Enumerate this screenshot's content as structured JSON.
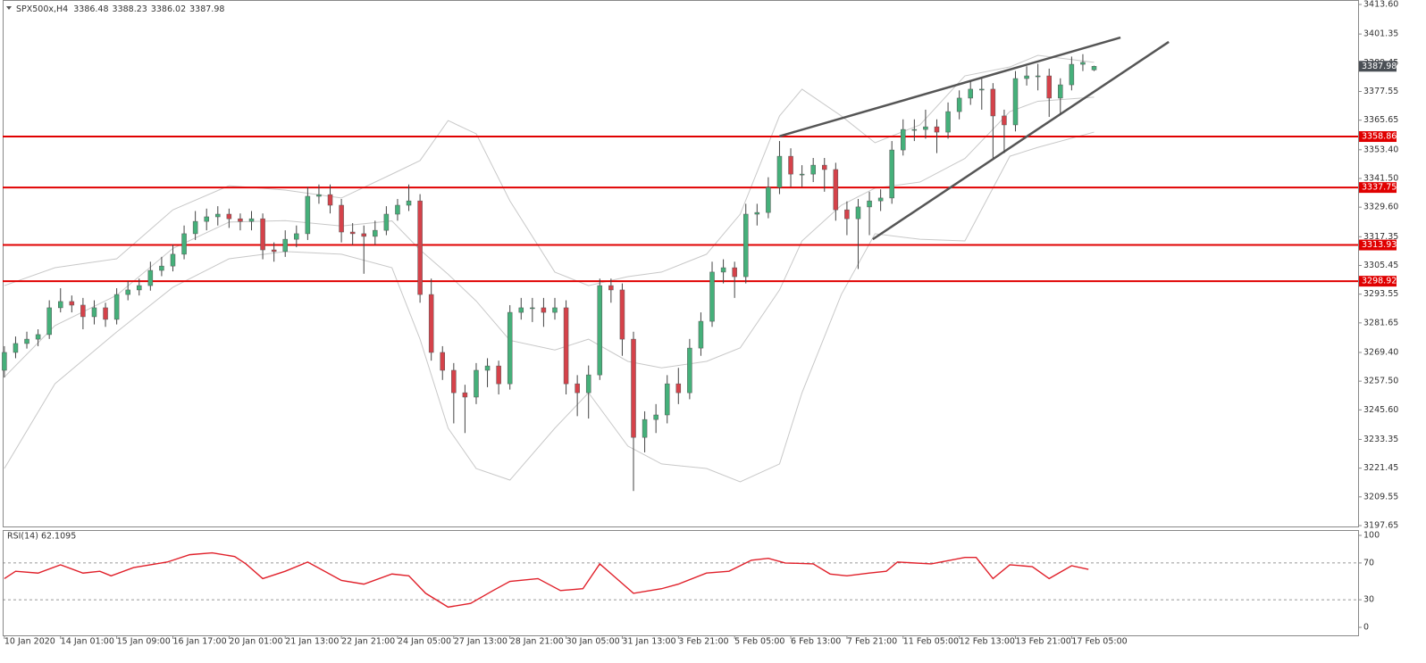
{
  "chart_data": [
    {
      "type": "candlestick",
      "title": "SPX500x,H4",
      "x": [
        0,
        2,
        4,
        6,
        8,
        10,
        12,
        14,
        16,
        18,
        20,
        22,
        24,
        26,
        28,
        30,
        32,
        34,
        36,
        38,
        40,
        42,
        44,
        46,
        48,
        50,
        52,
        54,
        56,
        58,
        60,
        62,
        64,
        66,
        68,
        70,
        72,
        74,
        76,
        78,
        80,
        82,
        84,
        86,
        88,
        90,
        92,
        94,
        96,
        98,
        100,
        102,
        104,
        106,
        108,
        110,
        112,
        114,
        116,
        118,
        120,
        122,
        124,
        126,
        128,
        130,
        132,
        134,
        136,
        138,
        140,
        142,
        144,
        146,
        148,
        150,
        152,
        154,
        156,
        158,
        160,
        162,
        164,
        166,
        168,
        170,
        172,
        174,
        176,
        178,
        180,
        182,
        184,
        186,
        188,
        190,
        192,
        194
      ],
      "open": [
        3262.0,
        3269.4,
        3273.1,
        3274.9,
        3276.8,
        3287.9,
        3290.5,
        3289.0,
        3284.2,
        3287.9,
        3283.1,
        3293.4,
        3295.3,
        3297.1,
        3303.4,
        3305.2,
        3310.1,
        3318.6,
        3323.7,
        3325.6,
        3326.7,
        3324.8,
        3323.7,
        3324.8,
        3311.9,
        3311.2,
        3316.3,
        3318.6,
        3334.1,
        3334.8,
        3330.4,
        3319.3,
        3318.6,
        3317.5,
        3320.0,
        3326.7,
        3330.4,
        3332.2,
        3293.4,
        3269.4,
        3262.0,
        3252.7,
        3250.9,
        3262.0,
        3263.8,
        3256.4,
        3286.0,
        3287.9,
        3287.9,
        3286.0,
        3287.9,
        3256.4,
        3252.7,
        3260.1,
        3297.1,
        3295.3,
        3274.9,
        3234.2,
        3241.6,
        3243.5,
        3256.4,
        3252.7,
        3271.2,
        3282.3,
        3302.7,
        3304.5,
        3300.8,
        3326.7,
        3327.4,
        3337.8,
        3350.7,
        3343.3,
        3343.3,
        3347.0,
        3345.2,
        3328.5,
        3324.8,
        3329.7,
        3332.2,
        3333.4,
        3353.3,
        3361.8,
        3361.8,
        3362.9,
        3360.7,
        3369.2,
        3374.8,
        3378.5,
        3378.5,
        3367.4,
        3363.7,
        3382.9,
        3384.0,
        3384.0,
        3374.8,
        3380.3,
        3388.8,
        3386.48
      ],
      "high": [
        3272,
        3276,
        3278,
        3279,
        3291,
        3296,
        3293,
        3292,
        3291,
        3290,
        3296,
        3299,
        3300,
        3307,
        3309,
        3314,
        3322,
        3328,
        3329,
        3330,
        3329,
        3327,
        3328,
        3327,
        3315,
        3320,
        3322,
        3338,
        3339,
        3339,
        3333,
        3323,
        3322,
        3324,
        3330,
        3333,
        3339,
        3335,
        3300,
        3272,
        3265,
        3256,
        3265,
        3267,
        3266,
        3289,
        3292,
        3292,
        3292,
        3292,
        3291,
        3260,
        3264,
        3300,
        3300,
        3298,
        3278,
        3245,
        3248,
        3260,
        3263,
        3275,
        3286,
        3307,
        3308,
        3307,
        3331,
        3331,
        3342,
        3357,
        3354,
        3347,
        3350,
        3350,
        3348,
        3332,
        3333,
        3336,
        3337,
        3357,
        3366,
        3366,
        3370,
        3366,
        3373,
        3378,
        3382,
        3383,
        3381,
        3370,
        3386,
        3388,
        3389,
        3387,
        3383,
        3392,
        3393,
        3388.23
      ],
      "low": [
        3259,
        3267,
        3271,
        3272,
        3275,
        3286,
        3286,
        3279,
        3281,
        3280,
        3281,
        3291,
        3293,
        3295,
        3301,
        3303,
        3308,
        3316,
        3320,
        3322,
        3321,
        3320,
        3320,
        3308,
        3307,
        3309,
        3313,
        3316,
        3331,
        3327,
        3315,
        3314,
        3302,
        3314,
        3318,
        3324,
        3328,
        3290,
        3266,
        3258,
        3240,
        3236,
        3248,
        3255,
        3252,
        3254,
        3283,
        3282,
        3280,
        3283,
        3252,
        3243,
        3242,
        3258,
        3290,
        3268,
        3212,
        3228,
        3236,
        3240,
        3248,
        3250,
        3268,
        3280,
        3298,
        3292,
        3298,
        3322,
        3325,
        3335,
        3338,
        3338,
        3340,
        3336,
        3324,
        3318,
        3304,
        3318,
        3328,
        3331,
        3351,
        3357,
        3358,
        3352,
        3358,
        3366,
        3372,
        3370,
        3350,
        3352,
        3361,
        3380,
        3378,
        3367,
        3368,
        3378,
        3386,
        3386.02
      ],
      "close": [
        3269.4,
        3273.1,
        3274.9,
        3276.8,
        3287.9,
        3290.5,
        3289.0,
        3284.2,
        3287.9,
        3283.1,
        3293.4,
        3295.3,
        3297.1,
        3303.4,
        3305.2,
        3310.1,
        3318.6,
        3323.7,
        3325.6,
        3326.7,
        3324.8,
        3323.7,
        3324.8,
        3311.9,
        3311.2,
        3316.3,
        3318.6,
        3334.1,
        3334.8,
        3330.4,
        3319.3,
        3318.6,
        3317.5,
        3320.0,
        3326.7,
        3330.4,
        3332.2,
        3293.4,
        3269.4,
        3262.0,
        3252.7,
        3250.9,
        3262.0,
        3263.8,
        3256.4,
        3286.0,
        3287.9,
        3287.9,
        3286.0,
        3287.9,
        3256.4,
        3252.7,
        3260.1,
        3297.1,
        3295.3,
        3274.9,
        3234.2,
        3241.6,
        3243.5,
        3256.4,
        3252.7,
        3271.2,
        3282.3,
        3302.7,
        3304.5,
        3300.8,
        3326.7,
        3327.4,
        3337.8,
        3350.7,
        3343.3,
        3343.3,
        3347.0,
        3345.2,
        3328.5,
        3324.8,
        3329.7,
        3332.2,
        3333.4,
        3353.3,
        3361.8,
        3361.8,
        3362.9,
        3360.7,
        3369.2,
        3374.8,
        3378.5,
        3378.5,
        3367.4,
        3363.7,
        3382.9,
        3384.0,
        3384.0,
        3374.8,
        3380.3,
        3388.8,
        3389.6,
        3387.98
      ],
      "up_color": "#45b07a",
      "down_color": "#d5424a",
      "bands": {
        "x": [
          0,
          9,
          20,
          30,
          40,
          50,
          60,
          69,
          74,
          79,
          84,
          90,
          98,
          104,
          111,
          117,
          125,
          131,
          138,
          142,
          149,
          155,
          163,
          171,
          179,
          184,
          194
        ],
        "upper": [
          3297.1,
          3304.5,
          3308.2,
          3328.5,
          3338.5,
          3336.7,
          3333.4,
          3343.3,
          3348.9,
          3365.5,
          3360.0,
          3332.2,
          3302.7,
          3297.1,
          3300.8,
          3302.7,
          3310.1,
          3326.7,
          3367.4,
          3378.5,
          3367.4,
          3356.3,
          3363.7,
          3384.0,
          3387.7,
          3392.5,
          3389.6
        ],
        "middle": [
          3259.2,
          3280.5,
          3293.1,
          3312.5,
          3323.4,
          3324.0,
          3321.8,
          3323.9,
          3311.9,
          3301.8,
          3290.7,
          3274.4,
          3270.4,
          3274.9,
          3265.7,
          3263.0,
          3265.7,
          3271.3,
          3295.3,
          3315.6,
          3330.4,
          3337.5,
          3340.0,
          3349.8,
          3369.2,
          3373.5,
          3375.2
        ],
        "lower": [
          3221.3,
          3256.4,
          3277.9,
          3296.4,
          3308.2,
          3311.2,
          3310.1,
          3304.5,
          3274.9,
          3238.0,
          3221.3,
          3216.5,
          3238.0,
          3252.7,
          3230.6,
          3223.2,
          3221.3,
          3215.8,
          3223.2,
          3252.7,
          3293.4,
          3318.6,
          3316.3,
          3315.6,
          3350.7,
          3354.4,
          3360.7
        ],
        "color": "#c8c8c8"
      },
      "levels": [
        3358.86,
        3337.75,
        3313.93,
        3298.92
      ],
      "level_color": "#e00000",
      "trendlines": [
        {
          "x": [
            138,
            198.7
          ],
          "y": [
            3359,
            3399.9
          ]
        },
        {
          "x": [
            154.6,
            207.3
          ],
          "y": [
            3316.3,
            3398.1
          ]
        }
      ],
      "trendline_color": "#555555",
      "xlim": [
        -0.3,
        241
      ],
      "ylim": [
        3197.28,
        3415.45
      ],
      "xticks": [
        {
          "value": 0,
          "label": "10 Jan 2020"
        },
        {
          "value": 10,
          "label": "14 Jan 01:00"
        },
        {
          "value": 20,
          "label": "15 Jan 09:00"
        },
        {
          "value": 30,
          "label": "16 Jan 17:00"
        },
        {
          "value": 40,
          "label": "20 Jan 01:00"
        },
        {
          "value": 50,
          "label": "21 Jan 13:00"
        },
        {
          "value": 60,
          "label": "22 Jan 21:00"
        },
        {
          "value": 70,
          "label": "24 Jan 05:00"
        },
        {
          "value": 80,
          "label": "27 Jan 13:00"
        },
        {
          "value": 90,
          "label": "28 Jan 21:00"
        },
        {
          "value": 100,
          "label": "30 Jan 05:00"
        },
        {
          "value": 110,
          "label": "31 Jan 13:00"
        },
        {
          "value": 120,
          "label": "3 Feb 21:00"
        },
        {
          "value": 130,
          "label": "5 Feb 05:00"
        },
        {
          "value": 140,
          "label": "6 Feb 13:00"
        },
        {
          "value": 150,
          "label": "7 Feb 21:00"
        },
        {
          "value": 160,
          "label": "11 Feb 05:00"
        },
        {
          "value": 170,
          "label": "12 Feb 13:00"
        },
        {
          "value": 180,
          "label": "13 Feb 21:00"
        },
        {
          "value": 190,
          "label": "17 Feb 05:00"
        }
      ],
      "yticks": [
        {
          "value": 3413.6,
          "label": "3413.60"
        },
        3401.35,
        3389.45,
        3377.55,
        3365.65,
        {
          "value": 3353.4,
          "label": "3353.40"
        },
        {
          "value": 3341.5,
          "label": "3341.50"
        },
        {
          "value": 3329.6,
          "label": "3329.60"
        },
        3317.35,
        3305.45,
        3293.55,
        3281.65,
        {
          "value": 3269.4,
          "label": "3269.40"
        },
        {
          "value": 3257.5,
          "label": "3257.50"
        },
        {
          "value": 3245.6,
          "label": "3245.60"
        },
        3233.35,
        3221.45,
        3209.55,
        3197.65
      ]
    },
    {
      "type": "line",
      "title": "RSI(14) 62.1095",
      "color": "#e0202a",
      "x": [
        0,
        2,
        6,
        10,
        14,
        17,
        19,
        23,
        29,
        33,
        37,
        41,
        43,
        46,
        50,
        54,
        60,
        64,
        69,
        72,
        75,
        79,
        83,
        87,
        90,
        95,
        99,
        103,
        106,
        109,
        112,
        117,
        120,
        125,
        129,
        133,
        136,
        139,
        144,
        147,
        150,
        154,
        157,
        159,
        165,
        171,
        173,
        176,
        179,
        183,
        186,
        190,
        193
      ],
      "values": [
        53,
        61,
        59,
        68,
        59,
        61,
        56,
        65,
        71,
        79,
        81,
        77,
        69,
        53,
        61,
        71,
        51,
        47,
        58,
        56,
        37,
        22,
        26,
        40,
        50,
        53,
        40,
        42,
        69,
        53,
        37,
        42,
        47,
        59,
        61,
        73,
        75,
        70,
        69,
        58,
        56,
        59,
        61,
        71,
        69,
        76,
        76,
        53,
        68,
        66,
        53,
        67,
        63
      ],
      "levels": [
        70,
        30
      ],
      "ylim": [
        -8.7,
        105.8
      ],
      "yticks": [
        0,
        30,
        70,
        100
      ]
    }
  ]
}
